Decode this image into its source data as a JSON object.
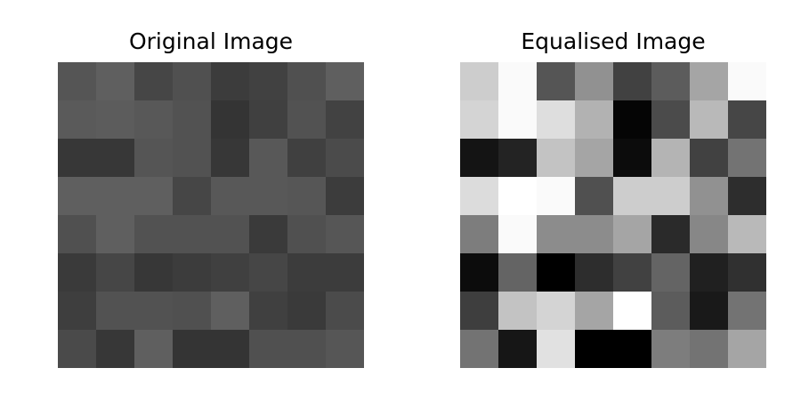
{
  "chart_data": [
    {
      "type": "heatmap",
      "title": "Original Image",
      "colormap": "gray",
      "grid": false,
      "rows": 8,
      "cols": 8,
      "values": [
        [
          85,
          95,
          70,
          80,
          60,
          65,
          80,
          95
        ],
        [
          90,
          92,
          88,
          82,
          52,
          64,
          82,
          66
        ],
        [
          55,
          55,
          85,
          82,
          55,
          88,
          64,
          75
        ],
        [
          95,
          95,
          95,
          70,
          88,
          88,
          86,
          60
        ],
        [
          80,
          95,
          82,
          82,
          82,
          58,
          80,
          86
        ],
        [
          58,
          70,
          55,
          60,
          64,
          70,
          60,
          60
        ],
        [
          62,
          82,
          82,
          80,
          95,
          64,
          58,
          75
        ],
        [
          74,
          55,
          95,
          52,
          52,
          80,
          80,
          86
        ]
      ]
    },
    {
      "type": "heatmap",
      "title": "Equalised Image",
      "colormap": "gray",
      "grid": false,
      "rows": 8,
      "cols": 8,
      "values": [
        [
          205,
          250,
          85,
          145,
          65,
          92,
          165,
          250
        ],
        [
          212,
          250,
          222,
          178,
          5,
          75,
          185,
          70
        ],
        [
          20,
          35,
          195,
          165,
          12,
          180,
          65,
          115
        ],
        [
          220,
          255,
          250,
          80,
          205,
          205,
          145,
          45
        ],
        [
          125,
          250,
          140,
          140,
          165,
          42,
          135,
          185
        ],
        [
          12,
          100,
          0,
          45,
          65,
          100,
          32,
          48
        ],
        [
          62,
          195,
          212,
          165,
          255,
          92,
          25,
          115
        ],
        [
          115,
          22,
          225,
          0,
          0,
          125,
          115,
          165
        ]
      ]
    }
  ]
}
